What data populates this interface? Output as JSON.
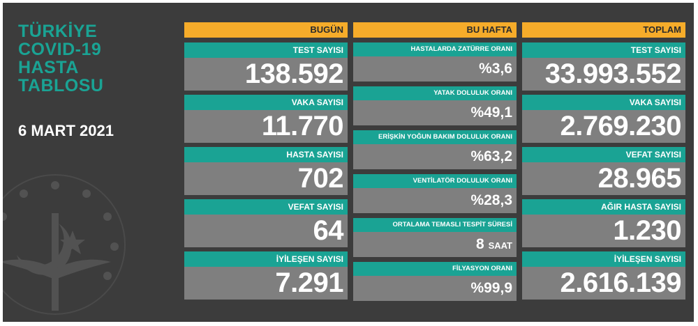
{
  "title": [
    "TÜRKİYE",
    "COVID-19",
    "HASTA",
    "TABLOSU"
  ],
  "date": "6 MART 2021",
  "colors": {
    "background": "#3c3c3c",
    "header": "#f6ac2a",
    "label": "#1aa394",
    "value": "#7f7f7f",
    "title": "#1aa394"
  },
  "today": {
    "header": "BUGÜN",
    "items": [
      {
        "label": "TEST SAYISI",
        "value": "138.592"
      },
      {
        "label": "VAKA SAYISI",
        "value": "11.770"
      },
      {
        "label": "HASTA SAYISI",
        "value": "702"
      },
      {
        "label": "VEFAT SAYISI",
        "value": "64"
      },
      {
        "label": "İYİLEŞEN SAYISI",
        "value": "7.291"
      }
    ]
  },
  "week": {
    "header": "BU HAFTA",
    "items": [
      {
        "label": "HASTALARDA ZATÜRRE ORANI",
        "value": "%3,6"
      },
      {
        "label": "YATAK DOLULUK ORANI",
        "value": "%49,1"
      },
      {
        "label": "ERİŞKİN YOĞUN BAKIM DOLULUK ORANI",
        "value": "%63,2"
      },
      {
        "label": "VENTİLATÖR DOLULUK ORANI",
        "value": "%28,3"
      },
      {
        "label": "ORTALAMA TEMASLI TESPİT SÜRESİ",
        "value": "8",
        "unit": "SAAT"
      },
      {
        "label": "FİLYASYON ORANI",
        "value": "%99,9"
      }
    ]
  },
  "total": {
    "header": "TOPLAM",
    "items": [
      {
        "label": "TEST SAYISI",
        "value": "33.993.552"
      },
      {
        "label": "VAKA SAYISI",
        "value": "2.769.230"
      },
      {
        "label": "VEFAT SAYISI",
        "value": "28.965"
      },
      {
        "label": "AĞIR HASTA SAYISI",
        "value": "1.230"
      },
      {
        "label": "İYİLEŞEN SAYISI",
        "value": "2.616.139"
      }
    ]
  }
}
